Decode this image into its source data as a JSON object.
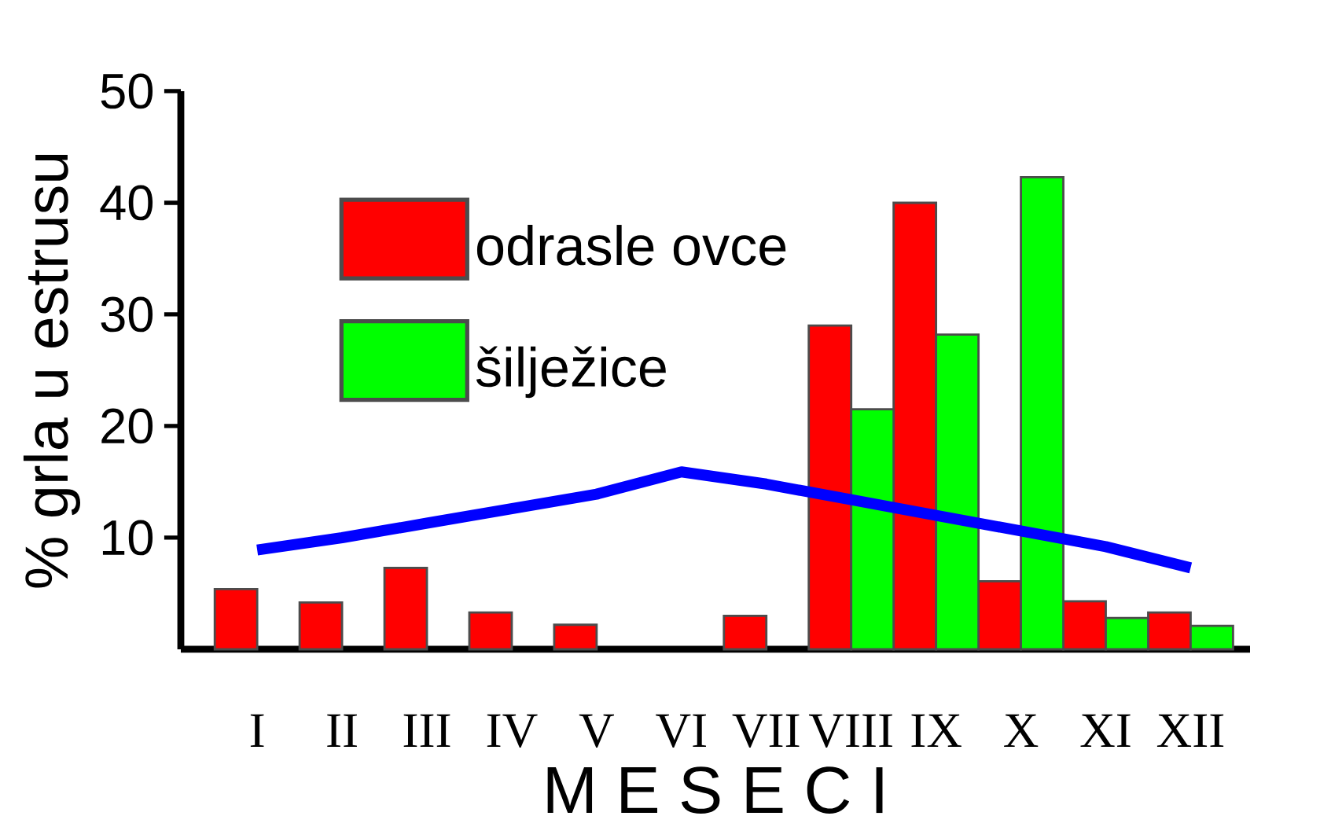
{
  "chart_data": {
    "type": "bar",
    "ylabel": "% grla u estrusu",
    "xlabel": "M E S E C I",
    "categories": [
      "I",
      "II",
      "III",
      "IV",
      "V",
      "VI",
      "VII",
      "VIII",
      "IX",
      "X",
      "XI",
      "XII"
    ],
    "series": [
      {
        "name": "odrasle ovce",
        "color": "#ff0000",
        "values": [
          5.4,
          4.2,
          7.3,
          3.3,
          2.2,
          null,
          3.0,
          29,
          40,
          6.1,
          4.3,
          3.3
        ]
      },
      {
        "name": "šilježice",
        "color": "#00ff00",
        "values": [
          null,
          null,
          null,
          null,
          null,
          null,
          null,
          21.5,
          28.2,
          42.3,
          2.8,
          2.1
        ]
      },
      {
        "type": "line",
        "color": "#0000ff",
        "values": [
          8.9,
          10.0,
          11.3,
          12.6,
          13.9,
          15.9,
          14.8,
          13.4,
          12.0,
          10.6,
          9.2,
          7.3
        ]
      }
    ],
    "ylim": [
      0,
      50
    ],
    "yticks": [
      10,
      20,
      30,
      40,
      50
    ],
    "legend": "top left",
    "grid": false
  }
}
